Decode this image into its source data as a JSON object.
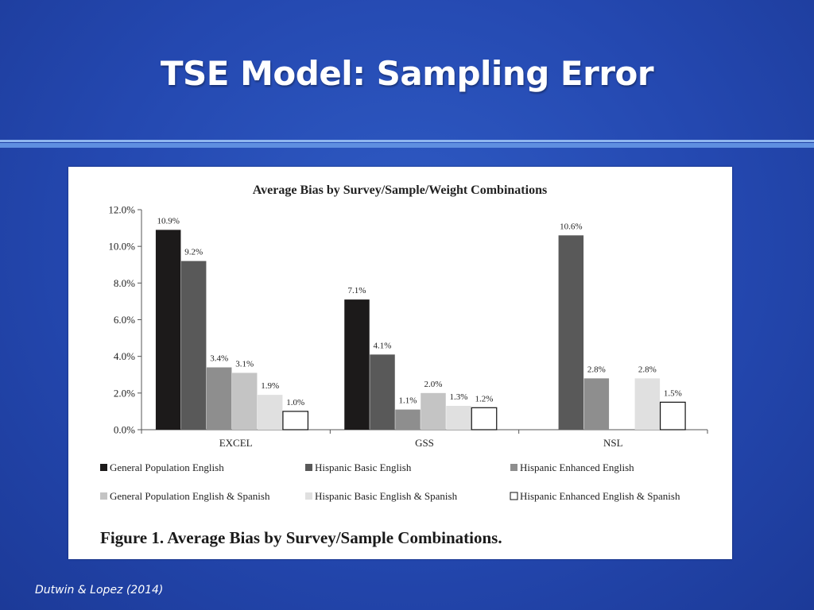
{
  "slide": {
    "title": "TSE Model: Sampling Error",
    "credit": "Dutwin & Lopez (2014)"
  },
  "figure": {
    "caption": "Figure 1.  Average Bias by Survey/Sample Combinations."
  },
  "chart_data": {
    "type": "bar",
    "title": "Average Bias by Survey/Sample/Weight Combinations",
    "xlabel": "",
    "ylabel": "",
    "ylim": [
      0,
      12
    ],
    "yticks": [
      0,
      2,
      4,
      6,
      8,
      10,
      12
    ],
    "ytick_labels": [
      "0.0%",
      "2.0%",
      "4.0%",
      "6.0%",
      "8.0%",
      "10.0%",
      "12.0%"
    ],
    "categories": [
      "EXCEL",
      "GSS",
      "NSL"
    ],
    "series": [
      {
        "name": "General Population English",
        "color": "#1c1a1a",
        "values": [
          10.9,
          7.1,
          null
        ],
        "labels": [
          "10.9%",
          "7.1%",
          ""
        ]
      },
      {
        "name": "Hispanic Basic English",
        "color": "#595959",
        "values": [
          9.2,
          4.1,
          10.6
        ],
        "labels": [
          "9.2%",
          "4.1%",
          "10.6%"
        ]
      },
      {
        "name": "Hispanic Enhanced English",
        "color": "#8e8e8e",
        "values": [
          3.4,
          1.1,
          2.8
        ],
        "labels": [
          "3.4%",
          "1.1%",
          "2.8%"
        ]
      },
      {
        "name": "General Population English & Spanish",
        "color": "#c4c4c4",
        "values": [
          3.1,
          2.0,
          null
        ],
        "labels": [
          "3.1%",
          "2.0%",
          ""
        ]
      },
      {
        "name": "Hispanic Basic English & Spanish",
        "color": "#e0e0e0",
        "values": [
          1.9,
          1.3,
          2.8
        ],
        "labels": [
          "1.9%",
          "1.3%",
          "2.8%"
        ]
      },
      {
        "name": "Hispanic Enhanced English & Spanish",
        "color": "#ffffff",
        "values": [
          1.0,
          1.2,
          1.5
        ],
        "labels": [
          "1.0%",
          "1.2%",
          "1.5%"
        ]
      }
    ],
    "legend_position": "bottom"
  }
}
